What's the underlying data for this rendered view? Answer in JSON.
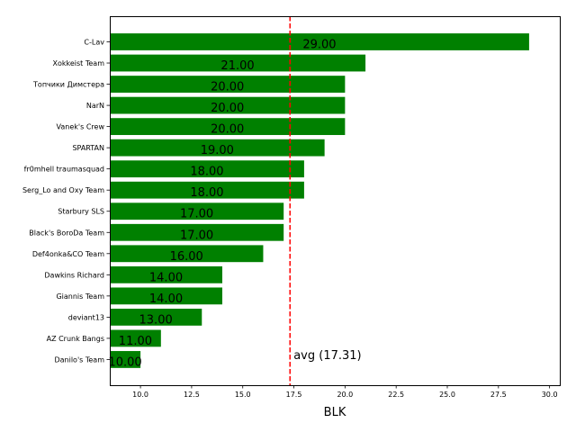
{
  "chart_data": {
    "type": "bar",
    "orientation": "horizontal",
    "categories": [
      "C-Lav",
      "Xokkeist Team",
      "Топчики Димстера",
      "NarN",
      "Vanek's Crew",
      "SPARTAN",
      "fr0mhell traumasquad",
      "Serg_Lo and Oxy Team",
      "Starbury SLS",
      "Black's BoroDa Team",
      "Def4onka&CO Team",
      "Dawkins Richard",
      "Giannis Team",
      "deviant13",
      "AZ Crunk Bangs",
      "Danilo's Team"
    ],
    "values": [
      29,
      21,
      20,
      20,
      20,
      19,
      18,
      18,
      17,
      17,
      16,
      14,
      14,
      13,
      11,
      10
    ],
    "value_labels": [
      "29.00",
      "21.00",
      "20.00",
      "20.00",
      "20.00",
      "19.00",
      "18.00",
      "18.00",
      "17.00",
      "17.00",
      "16.00",
      "14.00",
      "14.00",
      "13.00",
      "11.00",
      "10.00"
    ],
    "xlabel": "BLK",
    "xlim": [
      8.5,
      30.5
    ],
    "xticks": [
      "10.0",
      "12.5",
      "15.0",
      "17.5",
      "20.0",
      "22.5",
      "25.0",
      "27.5",
      "30.0"
    ],
    "bar_color": "#008000",
    "average": {
      "value": 17.31,
      "label": "avg (17.31)",
      "color": "#ff0000",
      "style": "dashed"
    },
    "grid": false,
    "legend": "none"
  }
}
